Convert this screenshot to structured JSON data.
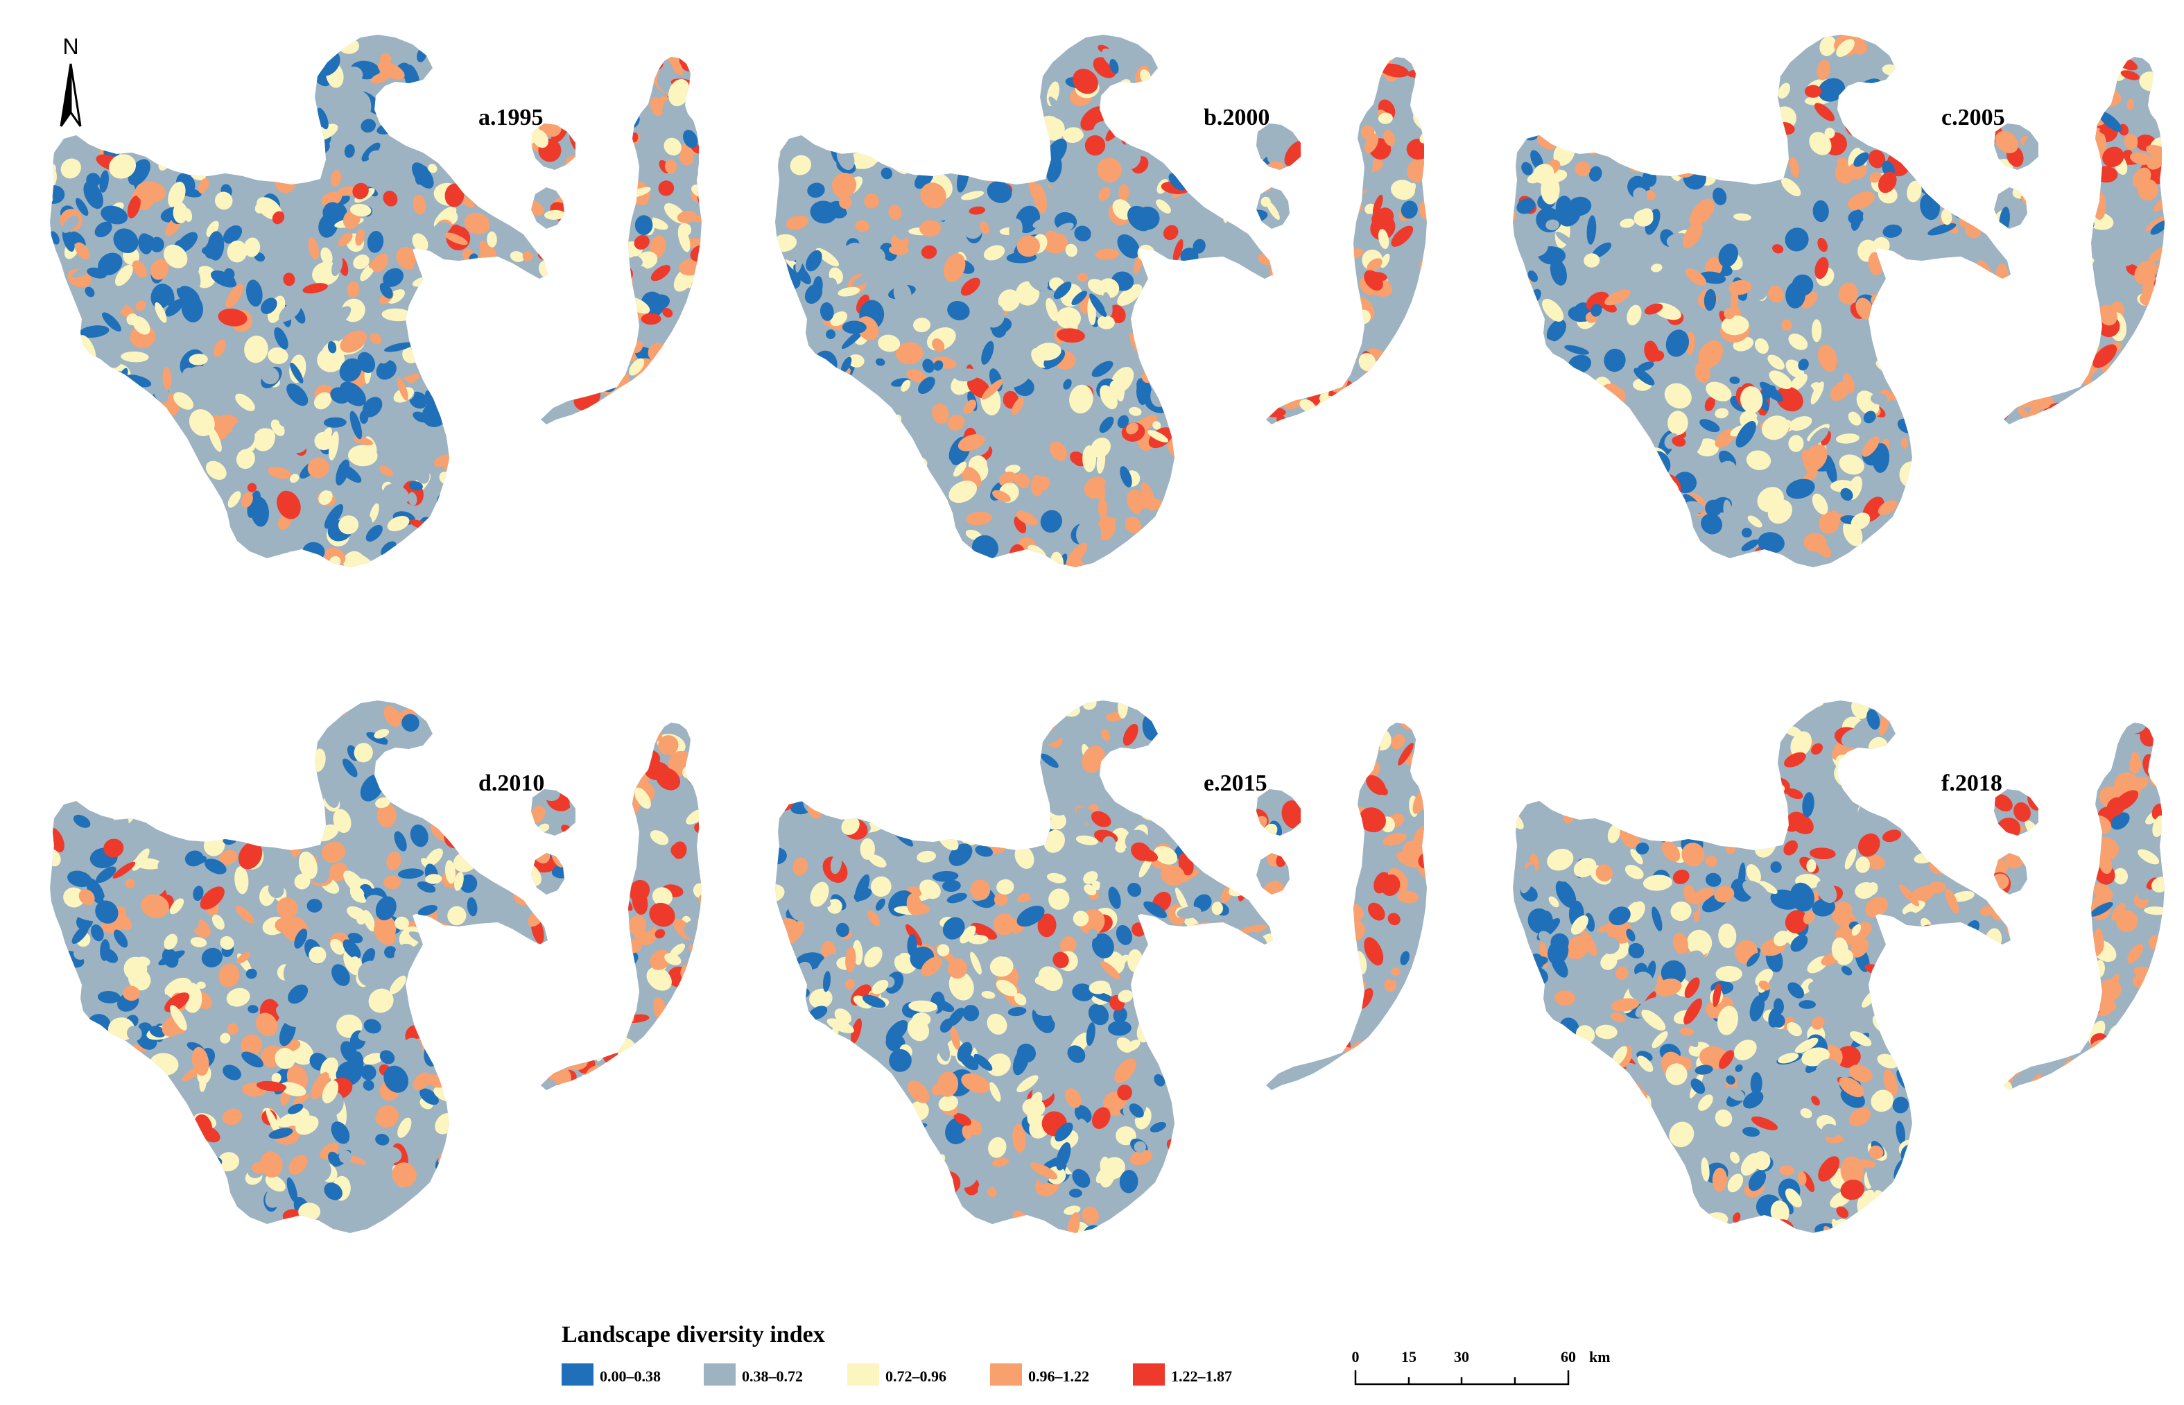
{
  "panels": [
    {
      "label": "a.1995",
      "year": 1995
    },
    {
      "label": "b.2000",
      "year": 2000
    },
    {
      "label": "c.2005",
      "year": 2005
    },
    {
      "label": "d.2010",
      "year": 2010
    },
    {
      "label": "e.2015",
      "year": 2015
    },
    {
      "label": "f.2018",
      "year": 2018
    }
  ],
  "north_arrow": {
    "label": "N",
    "icon": "north-arrow-icon"
  },
  "legend": {
    "title": "Landscape diversity index",
    "classes": [
      {
        "label": "0.00–0.38",
        "color": "#1f70b8"
      },
      {
        "label": "0.38–0.72",
        "color": "#9db3c2"
      },
      {
        "label": "0.72–0.96",
        "color": "#fdf5c0"
      },
      {
        "label": "0.96–1.22",
        "color": "#f8a06e"
      },
      {
        "label": "1.22–1.87",
        "color": "#ee3a2a"
      }
    ]
  },
  "scale_bar": {
    "ticks": [
      "0",
      "15",
      "30",
      "60"
    ],
    "unit": "km"
  }
}
